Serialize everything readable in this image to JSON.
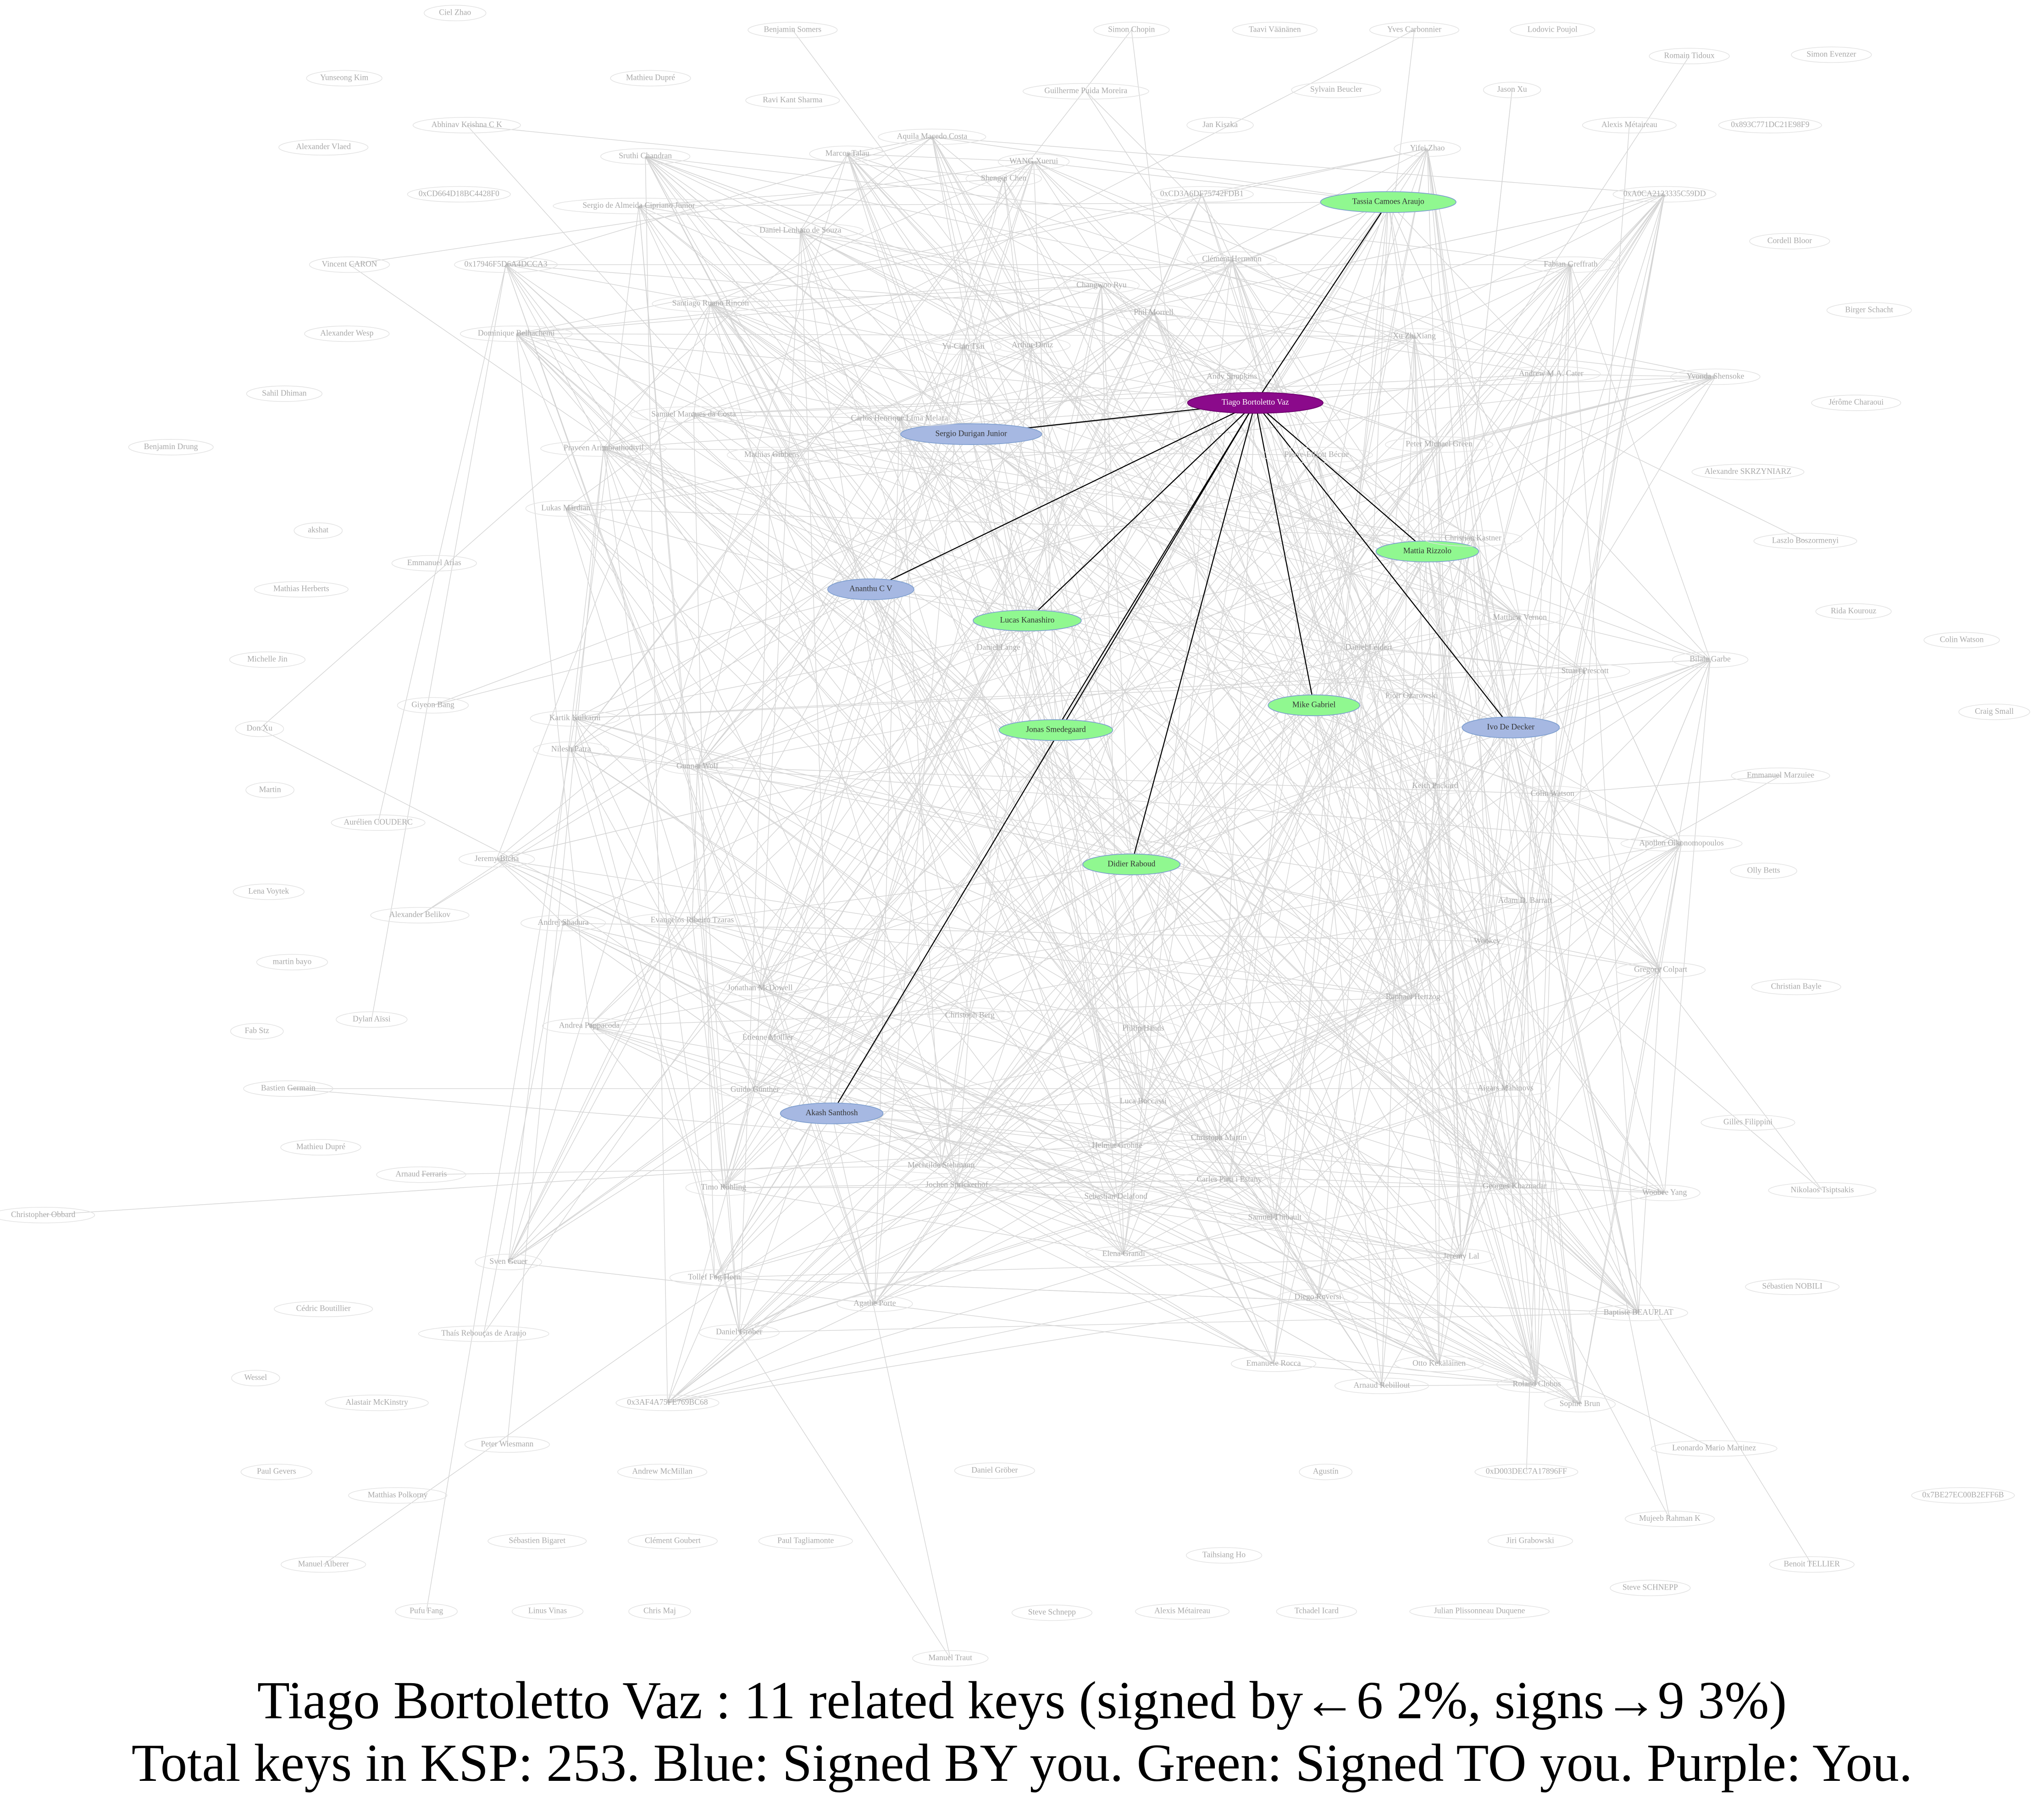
{
  "nodes": [
    {
      "label": "Tiago Bortoletto Vaz",
      "color": "#8b0a8b"
    },
    {
      "label": "Tassia Camoes Araujo",
      "color": "#90f890"
    },
    {
      "label": "Sergio Durigan Junior",
      "color": "#a6b8e2"
    },
    {
      "label": "Ananthu C V",
      "color": "#a6b8e2"
    },
    {
      "label": "Lucas Kanashiro",
      "color": "#90f890"
    },
    {
      "label": "Mike Gabriel",
      "color": "#90f890"
    },
    {
      "label": "Ivo De Decker",
      "color": "#a6b8e2"
    },
    {
      "label": "Jonas Smedegaard",
      "color": "#90f890"
    },
    {
      "label": "Didier Raboud",
      "color": "#90f890"
    },
    {
      "label": "Akash Santhosh",
      "color": "#a6b8e2"
    },
    {
      "label": "Mattia Rizzolo",
      "color": "#90f890"
    },
    {
      "label": "Ciel Zhao"
    },
    {
      "label": "Yunseong Kim"
    },
    {
      "label": "Abhinav Krishna C K"
    },
    {
      "label": "Alexander Vlaed"
    },
    {
      "label": "0xCD664D18BC4428F0"
    },
    {
      "label": "Vincent CARON"
    },
    {
      "label": "0x17946F5D6A4DCCA3"
    },
    {
      "label": "Alexander Wesp"
    },
    {
      "label": "Dominique Belhachemi"
    },
    {
      "label": "Sahil Dhiman"
    },
    {
      "label": "Benjamin Drung"
    },
    {
      "label": "akshat"
    },
    {
      "label": "Mathias Herberts"
    },
    {
      "label": "Michelle Jin"
    },
    {
      "label": "Don Xu"
    },
    {
      "label": "Martin"
    },
    {
      "label": "Giyeon Bang"
    },
    {
      "label": "Aurélien COUDERC"
    },
    {
      "label": "Jeremy Bicha"
    },
    {
      "label": "Lena Voytek"
    },
    {
      "label": "Alexander Belikov"
    },
    {
      "label": "martin bayo"
    },
    {
      "label": "Fab Stz"
    },
    {
      "label": "Dylan Aïssi"
    },
    {
      "label": "Bastien Germain"
    },
    {
      "label": "Mathieu Dupré"
    },
    {
      "label": "Arnaud Ferraris"
    },
    {
      "label": "Christopher Obbard"
    },
    {
      "label": "Sven Geuer"
    },
    {
      "label": "Cédric Boutillier"
    },
    {
      "label": "Thaís Rebouças de Araujo"
    },
    {
      "label": "Wessel"
    },
    {
      "label": "Alastair McKinstry"
    },
    {
      "label": "Paul Gevers"
    },
    {
      "label": "Matthias Polkorny"
    },
    {
      "label": "Manuel Alberer"
    },
    {
      "label": "Pufu Fang"
    },
    {
      "label": "Linus Vinas"
    },
    {
      "label": "Chris Maj"
    },
    {
      "label": "Sébastien Bigaret"
    },
    {
      "label": "Clément Goubert"
    },
    {
      "label": "Paul Tagliamonte"
    },
    {
      "label": "Peter Wiesmann"
    },
    {
      "label": "Andrew McMillan"
    },
    {
      "label": "0x3AF4A75FE769BC68"
    },
    {
      "label": "Benjamin Somers"
    },
    {
      "label": "Mathieu Dupré"
    },
    {
      "label": "Ravi Kant Sharma"
    },
    {
      "label": "Sruthi Chandran"
    },
    {
      "label": "Sergio de Almeida Cipriano Junior"
    },
    {
      "label": "Daniel Lenharo de Souza"
    },
    {
      "label": "Guilherme Puida Moreira"
    },
    {
      "label": "Aquila Macedo Costa"
    },
    {
      "label": "Marcos Talau"
    },
    {
      "label": "WANG Xuerui"
    },
    {
      "label": "Shengqi Chen"
    },
    {
      "label": "Simon Chopin"
    },
    {
      "label": "Taavi Väänänen"
    },
    {
      "label": "Yves Carbonnier"
    },
    {
      "label": "Lodovic Poujol"
    },
    {
      "label": "Romain Tidoux"
    },
    {
      "label": "Simon Evenzer"
    },
    {
      "label": "Sylvain Beucler"
    },
    {
      "label": "Jan Kiszka"
    },
    {
      "label": "Jason Xu"
    },
    {
      "label": "Alexis Métaireau"
    },
    {
      "label": "0x893C771DC21E98F9"
    },
    {
      "label": "Yifei Zhao"
    },
    {
      "label": "0xCD3A6DF75742FDB1"
    },
    {
      "label": "0xA0CA2123335C59DD"
    },
    {
      "label": "Clément Hermann"
    },
    {
      "label": "Cordell Bloor"
    },
    {
      "label": "Fabian Greffrath"
    },
    {
      "label": "Birger Schacht"
    },
    {
      "label": "Changwoo Ryu"
    },
    {
      "label": "Phil Morrell"
    },
    {
      "label": "Yu-Chin Tsai"
    },
    {
      "label": "Arthur Diniz"
    },
    {
      "label": "Andy Simpkins"
    },
    {
      "label": "Xu ZhiXiang"
    },
    {
      "label": "Andrew M.A. Cater"
    },
    {
      "label": "Yvonda Shensoke"
    },
    {
      "label": "Jérôme Charaoui"
    },
    {
      "label": "Alexandre SKRZYNIARZ"
    },
    {
      "label": "Laszlo Boszormenyi"
    },
    {
      "label": "Rida Kourouz"
    },
    {
      "label": "Colin Watson"
    },
    {
      "label": "Craig Small"
    },
    {
      "label": "Bilale Garbe"
    },
    {
      "label": "Emmanuel Marzuiee"
    },
    {
      "label": "Olly Betts"
    },
    {
      "label": "Christian Bayle"
    },
    {
      "label": "Gilles Filippini"
    },
    {
      "label": "Nikolaos Tsiptsakis"
    },
    {
      "label": "Woobee Yang"
    },
    {
      "label": "Sébastien NOBILI"
    },
    {
      "label": "Baptiste BEAUPLAT"
    },
    {
      "label": "Leonardo Mario Martinez"
    },
    {
      "label": "0x7BE27EC00B2EFF6B"
    },
    {
      "label": "0xD003DEC7A17896FF"
    },
    {
      "label": "Mujeeb Rahman K"
    },
    {
      "label": "Jiri Grabowski"
    },
    {
      "label": "Benoit TELLIER"
    },
    {
      "label": "Steve SCHNEPP"
    },
    {
      "label": "Julian Plissonneau Duquene"
    },
    {
      "label": "Taihsiang Ho"
    },
    {
      "label": "Agustín"
    },
    {
      "label": "Daniel Gröber"
    },
    {
      "label": "Steve Schnepp"
    },
    {
      "label": "Alexis Métaireau"
    },
    {
      "label": "Tchadel Icard"
    },
    {
      "label": "Manuel Traut"
    },
    {
      "label": "Lukas Märdian"
    },
    {
      "label": "Emmanuel Arias"
    },
    {
      "label": "Praveen Arimbrathodiyil"
    },
    {
      "label": "Samuel Marques da Costa"
    },
    {
      "label": "Mathias Gibbens"
    },
    {
      "label": "Carlos Henrique Lima Melara"
    },
    {
      "label": "Santiago Ruano Rincón"
    },
    {
      "label": "Kartik Kulkarni"
    },
    {
      "label": "Nilesh Patra"
    },
    {
      "label": "Evangelos Ribeiro Tzaras"
    },
    {
      "label": "Andrej Shadura"
    },
    {
      "label": "Andrea Pappacoda"
    },
    {
      "label": "Étienne Mollier"
    },
    {
      "label": "Guido Günther"
    },
    {
      "label": "Timo Röhling"
    },
    {
      "label": "Tollef Fog Heen"
    },
    {
      "label": "Agathe Porte"
    },
    {
      "label": "Daniel Gröber"
    },
    {
      "label": "Emanuele Rocca"
    },
    {
      "label": "Diego Roversi"
    },
    {
      "label": "Elena Grandi"
    },
    {
      "label": "Samuel Thibault"
    },
    {
      "label": "Jeremy Lal"
    },
    {
      "label": "Otto Kekäläinen"
    },
    {
      "label": "Roland Clobus"
    },
    {
      "label": "Sophie Brun"
    },
    {
      "label": "Arnaud Rebillout"
    },
    {
      "label": "Georges Khaznadar"
    },
    {
      "label": "Aigars Mahinovs"
    },
    {
      "label": "Gregory Colpart"
    },
    {
      "label": "Apollon Oikonomopoulos"
    },
    {
      "label": "Stuart Prescott"
    },
    {
      "label": "Colin Watson"
    },
    {
      "label": "Keith Packard"
    },
    {
      "label": "Adam D. Barratt"
    },
    {
      "label": "Wookey"
    },
    {
      "label": "Raphael Hertzog"
    },
    {
      "label": "Christoph Berg"
    },
    {
      "label": "Jonathan McDowell"
    },
    {
      "label": "Philip Hands"
    },
    {
      "label": "Gunnar Wolf"
    },
    {
      "label": "Daniel Lange"
    },
    {
      "label": "Sebastian Delafond"
    },
    {
      "label": "Helmut Grohne"
    },
    {
      "label": "Christoph Martin"
    },
    {
      "label": "Carles Pina i Estany"
    },
    {
      "label": "Luca Boccassi"
    },
    {
      "label": "Jochen Sprickerhof"
    },
    {
      "label": "Mechtilde Stehmann"
    },
    {
      "label": "Pierre-Elliott Bécue"
    },
    {
      "label": "Peter Michael Green"
    },
    {
      "label": "Christian Kastner"
    },
    {
      "label": "Matthew Vernon"
    },
    {
      "label": "Daniel Leidert"
    },
    {
      "label": "Piotr Ożarowski"
    }
  ],
  "caption": [
    "Tiago Bortoletto Vaz : 11 related keys (signed by←6  2%, signs→9  3%)",
    "Total keys in KSP: 253. Blue: Signed BY you. Green: Signed TO you. Purple: You."
  ]
}
